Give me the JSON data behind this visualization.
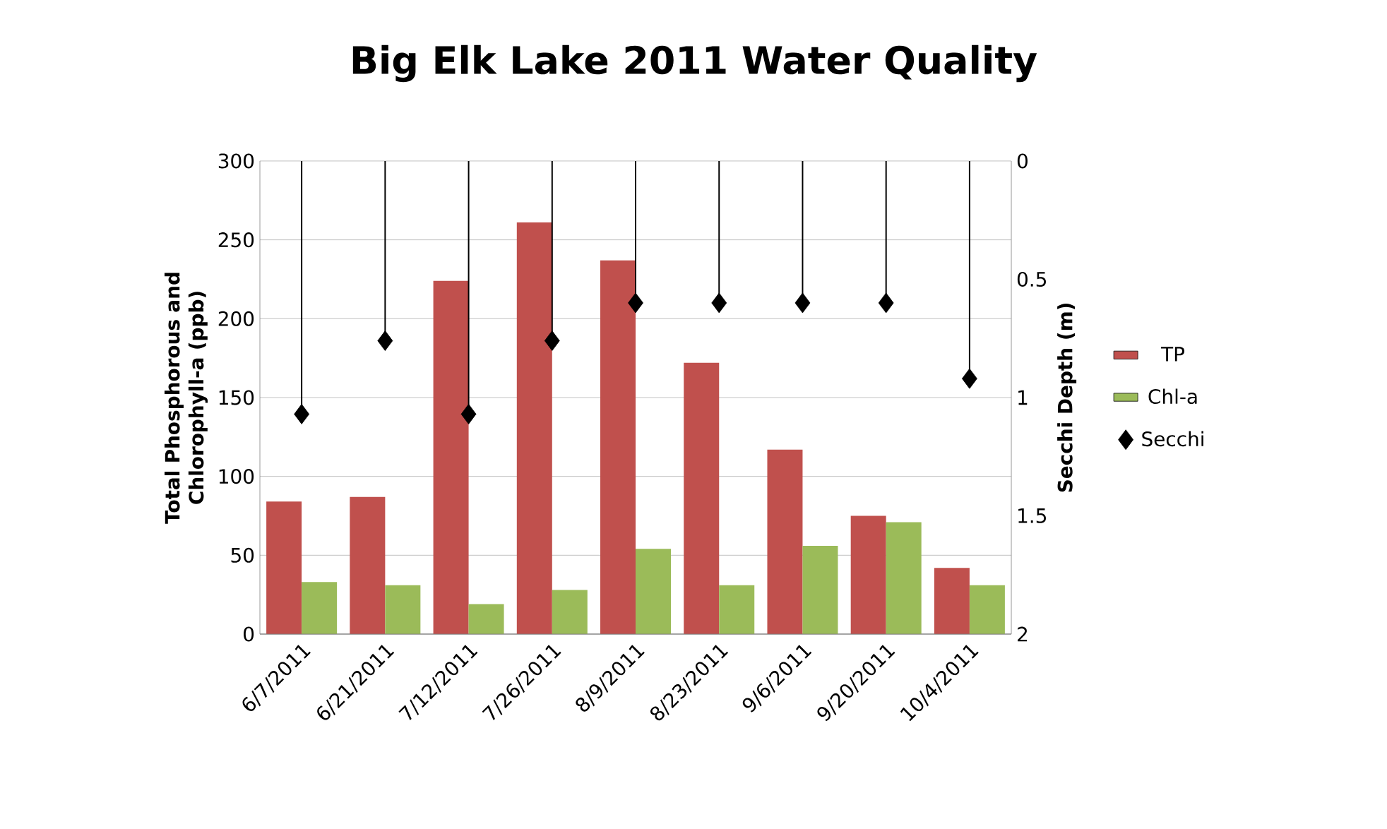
{
  "chart_data": {
    "type": "bar",
    "title": "Big Elk Lake 2011 Water Quality",
    "ylabel": "Total Phosphorous and Chlorophyll-a (ppb)",
    "y2label": "Secchi Depth (m)",
    "categories": [
      "6/7/2011",
      "6/21/2011",
      "7/12/2011",
      "7/26/2011",
      "8/9/2011",
      "8/23/2011",
      "9/6/2011",
      "9/20/2011",
      "10/4/2011"
    ],
    "series": [
      {
        "name": "TP",
        "color": "#c0504d",
        "values": [
          84,
          87,
          224,
          261,
          237,
          172,
          117,
          75,
          42
        ]
      },
      {
        "name": "Chl-a",
        "color": "#9bbb59",
        "values": [
          33,
          31,
          19,
          28,
          54,
          31,
          56,
          71,
          31
        ]
      },
      {
        "name": "Secchi",
        "type": "scatter",
        "axis": "y2",
        "color": "#000000",
        "marker": "diamond",
        "values": [
          1.07,
          0.76,
          1.07,
          0.76,
          0.6,
          0.6,
          0.6,
          0.6,
          0.92
        ],
        "errors": [
          [
            0,
            1.07
          ],
          [
            0,
            0.76
          ],
          [
            0,
            1.07
          ],
          [
            0,
            0.76
          ],
          [
            0,
            0.6
          ],
          [
            0,
            0.6
          ],
          [
            0,
            0.6
          ],
          [
            0,
            0.6
          ],
          [
            0,
            0.92
          ]
        ]
      }
    ],
    "ylim": [
      0,
      300
    ],
    "yticks": [
      0,
      50,
      100,
      150,
      200,
      250,
      300
    ],
    "y2lim": [
      2,
      0
    ],
    "y2ticks": [
      0,
      0.5,
      1,
      1.5,
      2
    ],
    "grid": "y",
    "legend": "right"
  }
}
